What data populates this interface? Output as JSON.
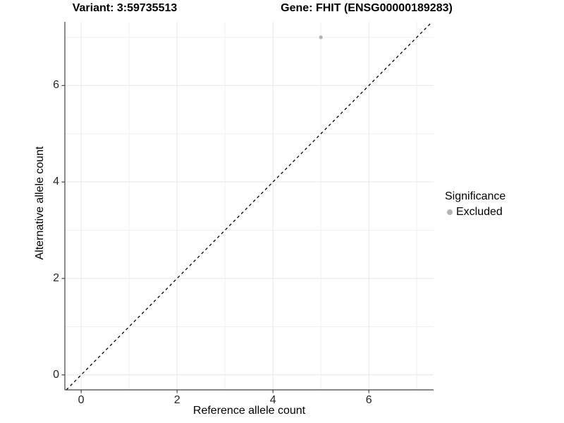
{
  "chart_data": {
    "type": "scatter",
    "title_left": "Variant: 3:59735513",
    "title_right": "Gene: FHIT (ENSG00000189283)",
    "xlabel": "Reference allele count",
    "ylabel": "Alternative allele count",
    "xlim": [
      -0.34,
      7.35
    ],
    "ylim": [
      -0.31,
      7.32
    ],
    "x_ticks": [
      0,
      2,
      4,
      6
    ],
    "y_ticks": [
      0,
      2,
      4,
      6
    ],
    "x_minor": [
      1,
      3,
      5,
      7
    ],
    "y_minor": [
      1,
      3,
      5,
      7
    ],
    "points": [
      {
        "x": 5,
        "y": 7,
        "significance": "Excluded"
      }
    ],
    "identity_line": {
      "slope": 1,
      "intercept": 0,
      "style": "dashed"
    },
    "legend": {
      "title": "Significance",
      "items": [
        {
          "label": "Excluded",
          "color": "#b3b3b3"
        }
      ]
    },
    "colors": {
      "point": "#b3b3b3",
      "dashed_line": "#000000",
      "axis_line": "#404040",
      "tick_mark": "#404040",
      "grid_major": "#e6e6e6",
      "grid_minor": "#f0f0f0",
      "background": "#ffffff"
    }
  }
}
